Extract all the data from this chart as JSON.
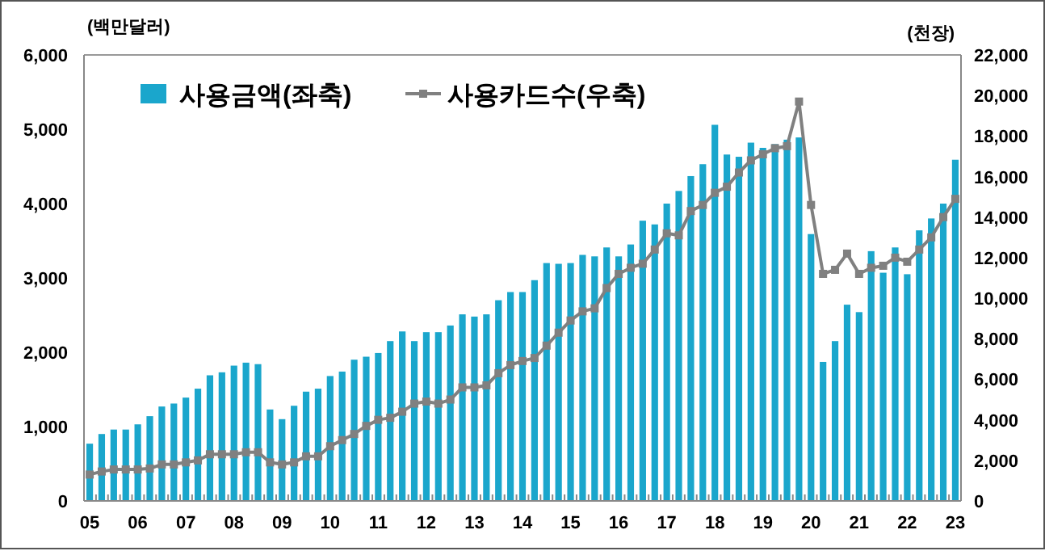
{
  "chart_data": {
    "type": "bar",
    "ylabel": "(백만달러)",
    "y2label": "(천장)",
    "categories": [
      "05",
      null,
      null,
      null,
      "06",
      null,
      null,
      null,
      "07",
      null,
      null,
      null,
      "08",
      null,
      null,
      null,
      "09",
      null,
      null,
      null,
      "10",
      null,
      null,
      null,
      "11",
      null,
      null,
      null,
      "12",
      null,
      null,
      null,
      "13",
      null,
      null,
      null,
      "14",
      null,
      null,
      null,
      "15",
      null,
      null,
      null,
      "16",
      null,
      null,
      null,
      "17",
      null,
      null,
      null,
      "18",
      null,
      null,
      null,
      "19",
      null,
      null,
      null,
      "20",
      null,
      null,
      null,
      "21",
      null,
      null,
      null,
      "22",
      null,
      null,
      null,
      "23"
    ],
    "series": [
      {
        "name": "사용금액(좌축)",
        "color": "#1aa6cc",
        "values": [
          770,
          900,
          960,
          960,
          1030,
          1140,
          1270,
          1310,
          1390,
          1510,
          1690,
          1730,
          1820,
          1860,
          1840,
          1230,
          1100,
          1280,
          1470,
          1510,
          1680,
          1740,
          1900,
          1940,
          1990,
          2150,
          2280,
          2150,
          2270,
          2270,
          2360,
          2510,
          2480,
          2510,
          2700,
          2810,
          2810,
          2970,
          3200,
          3190,
          3200,
          3310,
          3290,
          3410,
          3290,
          3450,
          3770,
          3720,
          4000,
          4170,
          4370,
          4530,
          5060,
          4660,
          4630,
          4820,
          4750,
          4800,
          4860,
          4890,
          3590,
          1870,
          2150,
          2640,
          2540,
          3360,
          3070,
          3410,
          3050,
          3640,
          3800,
          4000,
          4590
        ]
      },
      {
        "name": "사용카드수(우축)",
        "type": "line",
        "axis": "y2",
        "color": "#808080",
        "marker": "square",
        "values": [
          1300,
          1450,
          1550,
          1550,
          1550,
          1600,
          1800,
          1800,
          1900,
          2000,
          2300,
          2300,
          2300,
          2400,
          2400,
          1900,
          1800,
          1900,
          2200,
          2200,
          2700,
          3000,
          3300,
          3700,
          4000,
          4100,
          4400,
          4800,
          4900,
          4800,
          5000,
          5600,
          5600,
          5700,
          6300,
          6700,
          6900,
          7050,
          7660,
          8300,
          8900,
          9350,
          9500,
          10500,
          11200,
          11500,
          11700,
          12400,
          13200,
          13100,
          14300,
          14600,
          15200,
          15500,
          16200,
          16800,
          17100,
          17400,
          17500,
          19700,
          14600,
          11200,
          11400,
          12200,
          11200,
          11500,
          11600,
          12000,
          11800,
          12400,
          13000,
          14000,
          14900
        ]
      }
    ],
    "ylim": [
      0,
      6000
    ],
    "yticks": [
      {
        "value": 0,
        "label": "0"
      },
      {
        "value": 1000,
        "label": "1,000"
      },
      {
        "value": 2000,
        "label": "2,000"
      },
      {
        "value": 3000,
        "label": "3,000"
      },
      {
        "value": 4000,
        "label": "4,000"
      },
      {
        "value": 5000,
        "label": "5,000"
      },
      {
        "value": 6000,
        "label": "6,000"
      }
    ],
    "y2lim": [
      0,
      22000
    ],
    "y2ticks": [
      {
        "value": 0,
        "label": "0"
      },
      {
        "value": 2000,
        "label": "2,000"
      },
      {
        "value": 4000,
        "label": "4,000"
      },
      {
        "value": 6000,
        "label": "6,000"
      },
      {
        "value": 8000,
        "label": "8,000"
      },
      {
        "value": 10000,
        "label": "10,000"
      },
      {
        "value": 12000,
        "label": "12,000"
      },
      {
        "value": 14000,
        "label": "14,000"
      },
      {
        "value": 16000,
        "label": "16,000"
      },
      {
        "value": 18000,
        "label": "18,000"
      },
      {
        "value": 20000,
        "label": "20,000"
      },
      {
        "value": 22000,
        "label": "22,000"
      }
    ],
    "grid": false,
    "legend": "top left"
  }
}
